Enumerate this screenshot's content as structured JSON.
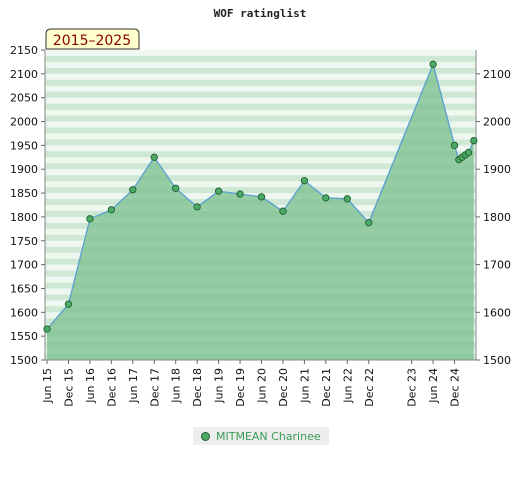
{
  "chart_data": {
    "type": "area",
    "title": "WOF ratinglist",
    "badge": "2015–2025",
    "x_tick_labels": [
      "Jun 15",
      "Dec 15",
      "Jun 16",
      "Dec 16",
      "Jun 17",
      "Dec 17",
      "Jun 18",
      "Dec 18",
      "Jun 19",
      "Dec 19",
      "Jun 20",
      "Dec 20",
      "Jun 21",
      "Dec 21",
      "Jun 22",
      "Dec 22",
      "Dec 23",
      "Jun 24",
      "Dec 24"
    ],
    "x_tick_slots": [
      0,
      1,
      2,
      3,
      4,
      5,
      6,
      7,
      8,
      9,
      10,
      11,
      12,
      13,
      14,
      15,
      17,
      18,
      19
    ],
    "ylim_left": [
      1500,
      2150
    ],
    "y_ticks_left": [
      1500,
      1550,
      1600,
      1650,
      1700,
      1750,
      1800,
      1850,
      1900,
      1950,
      2000,
      2050,
      2100,
      2150
    ],
    "ylim_right": [
      1500,
      2150
    ],
    "y_ticks_right": [
      1500,
      1600,
      1700,
      1800,
      1900,
      2000,
      2100
    ],
    "colors": {
      "fill": "#78bf8c",
      "line": "#5aa0d0",
      "marker": "#4daa66",
      "band_dark": "#b4dcc0",
      "band_light": "#eef7f0",
      "badge_bg": "#ffffcc",
      "badge_text": "#8b0000"
    },
    "series": [
      {
        "name": "MITMEAN Charinee",
        "x": [
          0.0,
          1.0,
          2.0,
          3.0,
          4.0,
          5.0,
          6.0,
          7.0,
          8.0,
          9.0,
          10.0,
          11.0,
          12.0,
          13.0,
          14.0,
          15.0,
          18.0,
          19.0,
          19.2,
          19.35,
          19.5,
          19.65,
          19.9
        ],
        "values": [
          1565,
          1617,
          1796,
          1815,
          1857,
          1925,
          1860,
          1821,
          1854,
          1848,
          1842,
          1812,
          1876,
          1840,
          1838,
          1788,
          2120,
          1950,
          1920,
          1925,
          1930,
          1935,
          1960
        ]
      }
    ],
    "legend": "bottom-center"
  }
}
